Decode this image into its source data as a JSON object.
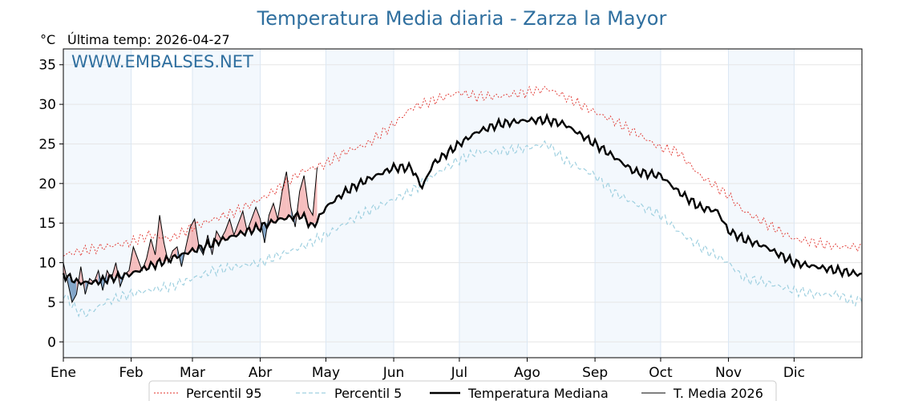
{
  "chart_data": {
    "type": "line",
    "title": "Temperatura Media diaria - Zarza la Mayor",
    "ylabel": "°C",
    "subtitle": "Última temp: 2026-04-27",
    "watermark": "WWW.EMBALSES.NET",
    "ylim": [
      -2,
      37
    ],
    "yticks": [
      0,
      5,
      10,
      15,
      20,
      25,
      30,
      35
    ],
    "xlim": [
      1,
      366
    ],
    "months": [
      {
        "label": "Ene",
        "day": 1
      },
      {
        "label": "Feb",
        "day": 32
      },
      {
        "label": "Mar",
        "day": 60
      },
      {
        "label": "Abr",
        "day": 91
      },
      {
        "label": "May",
        "day": 121
      },
      {
        "label": "Jun",
        "day": 152
      },
      {
        "label": "Jul",
        "day": 182
      },
      {
        "label": "Ago",
        "day": 213
      },
      {
        "label": "Sep",
        "day": 244
      },
      {
        "label": "Oct",
        "day": 274
      },
      {
        "label": "Nov",
        "day": 305
      },
      {
        "label": "Dic",
        "day": 335
      }
    ],
    "grid": true,
    "legend_position": "bottom-center",
    "series": [
      {
        "name": "Percentil 95",
        "style": "dotted",
        "color": "#e0302a",
        "x": [
          1,
          10,
          20,
          31,
          40,
          50,
          60,
          70,
          80,
          91,
          100,
          110,
          121,
          130,
          140,
          152,
          160,
          170,
          182,
          190,
          200,
          213,
          222,
          230,
          244,
          252,
          262,
          274,
          282,
          292,
          305,
          312,
          322,
          335,
          345,
          355,
          366
        ],
        "y": [
          11,
          11.5,
          12,
          12.5,
          13.5,
          13,
          14.5,
          15.5,
          16.5,
          18,
          19.5,
          21.5,
          22.5,
          24,
          25,
          27.5,
          29.5,
          30.5,
          31.5,
          31,
          31,
          31.5,
          32,
          31,
          29,
          28,
          26.5,
          24.5,
          24,
          21,
          18.5,
          16.5,
          15,
          13,
          12.5,
          12,
          12
        ]
      },
      {
        "name": "Percentil 5",
        "style": "dashed",
        "color": "#9fd0e0",
        "x": [
          1,
          7,
          12,
          20,
          31,
          40,
          50,
          60,
          70,
          80,
          91,
          100,
          110,
          121,
          130,
          140,
          152,
          160,
          170,
          182,
          190,
          200,
          213,
          222,
          230,
          244,
          252,
          262,
          274,
          282,
          292,
          305,
          312,
          322,
          335,
          345,
          355,
          362,
          366
        ],
        "y": [
          6,
          4,
          3.5,
          5,
          6,
          6.5,
          7,
          8,
          9,
          9.5,
          10,
          11,
          12,
          13.5,
          15,
          16.5,
          18,
          19,
          21,
          23,
          24,
          24,
          24.5,
          25,
          23,
          21,
          19,
          17.5,
          16,
          14,
          12,
          10,
          8,
          7.5,
          6.5,
          6,
          6,
          5,
          5.5
        ]
      },
      {
        "name": "Temperatura Mediana",
        "style": "thick",
        "color": "#000000",
        "x": [
          1,
          8,
          15,
          22,
          31,
          40,
          50,
          60,
          70,
          80,
          91,
          100,
          110,
          115,
          121,
          130,
          140,
          152,
          160,
          165,
          170,
          182,
          190,
          200,
          213,
          222,
          230,
          244,
          252,
          262,
          274,
          282,
          292,
          300,
          305,
          312,
          322,
          335,
          345,
          355,
          366
        ],
        "y": [
          8.5,
          7.5,
          7.5,
          8,
          8.5,
          9.5,
          10.5,
          11.5,
          12.5,
          13.5,
          14.5,
          15.5,
          16,
          14.5,
          17,
          19,
          20.5,
          22,
          22,
          19.5,
          22.5,
          25,
          26.5,
          27.5,
          28,
          28,
          27.5,
          25,
          23.5,
          21.5,
          21,
          19,
          17,
          16.5,
          14,
          13,
          12,
          10,
          9.5,
          9,
          8.5
        ]
      },
      {
        "name": "T. Media 2026",
        "style": "thin",
        "color": "#000000",
        "x": [
          1,
          3,
          5,
          7,
          9,
          11,
          13,
          15,
          17,
          19,
          21,
          23,
          25,
          27,
          29,
          31,
          33,
          35,
          37,
          39,
          41,
          43,
          45,
          47,
          49,
          51,
          53,
          55,
          57,
          59,
          61,
          63,
          65,
          67,
          69,
          71,
          73,
          75,
          77,
          79,
          81,
          83,
          85,
          87,
          89,
          91,
          93,
          95,
          97,
          99,
          101,
          103,
          105,
          107,
          109,
          111,
          113,
          115,
          117
        ],
        "y": [
          10,
          7.5,
          5,
          6,
          9.5,
          6,
          8,
          7.5,
          9,
          6.5,
          9,
          8,
          10,
          7,
          8.5,
          9,
          12,
          10.5,
          9,
          10.5,
          13,
          11,
          16,
          12.5,
          10,
          11.5,
          12,
          9.5,
          12,
          14.5,
          15.5,
          12,
          11,
          13.5,
          11,
          14,
          13,
          14,
          15.5,
          13.5,
          15,
          16.5,
          14,
          15.5,
          17,
          15.5,
          12.5,
          16,
          17.5,
          15.5,
          19,
          21.5,
          17,
          14.5,
          19,
          21,
          17,
          16,
          22
        ]
      }
    ]
  }
}
